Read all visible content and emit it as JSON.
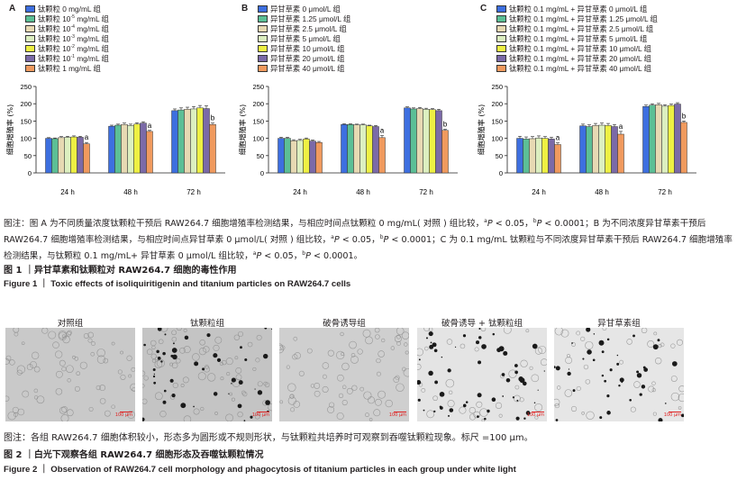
{
  "figure1": {
    "panels": [
      {
        "letter": "A",
        "legend": [
          {
            "text": "钛颗粒 0 mg/mL 组",
            "color": "#3d6fe0"
          },
          {
            "text": "钛颗粒 10",
            "sup": "-5",
            "text_after": " mg/mL 组",
            "color": "#5cbf96"
          },
          {
            "text": "钛颗粒 10",
            "sup": "-4",
            "text_after": " mg/mL 组",
            "color": "#e7d9b3"
          },
          {
            "text": "钛颗粒 10",
            "sup": "-3",
            "text_after": " mg/mL 组",
            "color": "#dcefc0"
          },
          {
            "text": "钛颗粒 10",
            "sup": "-2",
            "text_after": " mg/mL 组",
            "color": "#eef043"
          },
          {
            "text": "钛颗粒 10",
            "sup": "-1",
            "text_after": " mg/mL 组",
            "color": "#7b6aa8"
          },
          {
            "text": "钛颗粒 1 mg/mL 组",
            "color": "#f09a5e"
          }
        ]
      },
      {
        "letter": "B",
        "legend": [
          {
            "text": "异甘草素 0 μmol/L 组",
            "color": "#3d6fe0"
          },
          {
            "text": "异甘草素 1.25 μmol/L 组",
            "color": "#5cbf96"
          },
          {
            "text": "异甘草素 2.5 μmol/L 组",
            "color": "#e7d9b3"
          },
          {
            "text": "异甘草素 5 μmol/L 组",
            "color": "#dcefc0"
          },
          {
            "text": "异甘草素 10 μmol/L 组",
            "color": "#eef043"
          },
          {
            "text": "异甘草素 20 μmol/L 组",
            "color": "#7b6aa8"
          },
          {
            "text": "异甘草素 40 μmol/L 组",
            "color": "#f09a5e"
          }
        ]
      },
      {
        "letter": "C",
        "legend": [
          {
            "text": "钛颗粒 0.1 mg/mL + 异甘草素 0 μmol/L 组",
            "color": "#3d6fe0"
          },
          {
            "text": "钛颗粒 0.1 mg/mL + 异甘草素 1.25 μmol/L 组",
            "color": "#5cbf96"
          },
          {
            "text": "钛颗粒 0.1 mg/mL + 异甘草素 2.5 μmol/L 组",
            "color": "#e7d9b3"
          },
          {
            "text": "钛颗粒 0.1 mg/mL + 异甘草素 5 μmol/L 组",
            "color": "#dcefc0"
          },
          {
            "text": "钛颗粒 0.1 mg/mL + 异甘草素 10 μmol/L 组",
            "color": "#eef043"
          },
          {
            "text": "钛颗粒 0.1 mg/mL + 异甘草素 20 μmol/L 组",
            "color": "#7b6aa8"
          },
          {
            "text": "钛颗粒 0.1 mg/mL + 异甘草素 40 μmol/L 组",
            "color": "#f09a5e"
          }
        ]
      }
    ],
    "caption": "图注：图 A 为不同质量浓度钛颗粒干预后 RAW264.7 细胞增殖率检测结果，与相应时间点钛颗粒 0 mg/mL( 对照 ) 组比较，aP < 0.05，bP < 0.0001；B 为不同浓度异甘草素干预后 RAW264.7 细胞增殖率检测结果，与相应时间点异甘草素 0 μmol/L( 对照 ) 组比较，aP < 0.05，bP < 0.0001；C 为 0.1 mg/mL 钛颗粒与不同浓度异甘草素干预后 RAW264.7 细胞增殖率检测结果，与钛颗粒 0.1 mg/mL+ 异甘草素 0 μmol/L 组比较，aP < 0.05，bP < 0.0001。",
    "title_cn": "图 1 ｜异甘草素和钛颗粒对 RAW264.7 细胞的毒性作用",
    "title_en": "Figure 1 ｜ Toxic effects of isoliquiritigenin and titanium particles on RAW264.7 cells"
  },
  "chart_data": [
    {
      "type": "bar",
      "panel": "A",
      "ylabel": "细胞增殖率 (%)",
      "ylim": [
        0,
        250
      ],
      "yticks": [
        "0",
        "50",
        "100",
        "150",
        "200",
        "250"
      ],
      "categories": [
        "24 h",
        "48 h",
        "72 h"
      ],
      "series": [
        {
          "name": "钛颗粒 0 mg/mL 组",
          "color": "#3d6fe0",
          "values": [
            100,
            135,
            180
          ],
          "errors": [
            2,
            3,
            5
          ]
        },
        {
          "name": "钛颗粒 10-5 mg/mL 组",
          "color": "#5cbf96",
          "values": [
            99,
            138,
            182
          ],
          "errors": [
            2,
            3,
            6
          ]
        },
        {
          "name": "钛颗粒 10-4 mg/mL 组",
          "color": "#e7d9b3",
          "values": [
            102,
            140,
            184
          ],
          "errors": [
            3,
            4,
            6
          ]
        },
        {
          "name": "钛颗粒 10-3 mg/mL 组",
          "color": "#dcefc0",
          "values": [
            103,
            137,
            185
          ],
          "errors": [
            3,
            4,
            7
          ]
        },
        {
          "name": "钛颗粒 10-2 mg/mL 组",
          "color": "#eef043",
          "values": [
            104,
            141,
            188
          ],
          "errors": [
            3,
            4,
            7
          ]
        },
        {
          "name": "钛颗粒 10-1 mg/mL 组",
          "color": "#7b6aa8",
          "values": [
            103,
            144,
            186
          ],
          "errors": [
            3,
            4,
            8
          ]
        },
        {
          "name": "钛颗粒 1 mg/mL 组",
          "color": "#f09a5e",
          "values": [
            84,
            120,
            140
          ],
          "errors": [
            4,
            3,
            4
          ]
        }
      ],
      "annotations": [
        {
          "category": "24 h",
          "series": 6,
          "text": "a"
        },
        {
          "category": "48 h",
          "series": 6,
          "text": "a"
        },
        {
          "category": "72 h",
          "series": 6,
          "text": "b"
        }
      ]
    },
    {
      "type": "bar",
      "panel": "B",
      "ylabel": "细胞增殖率 (%)",
      "ylim": [
        0,
        250
      ],
      "yticks": [
        "0",
        "50",
        "100",
        "150",
        "200",
        "250"
      ],
      "categories": [
        "24 h",
        "48 h",
        "72 h"
      ],
      "series": [
        {
          "name": "异甘草素 0 μmol/L 组",
          "color": "#3d6fe0",
          "values": [
            100,
            140,
            188
          ],
          "errors": [
            3,
            2,
            3
          ]
        },
        {
          "name": "异甘草素 1.25 μmol/L 组",
          "color": "#5cbf96",
          "values": [
            100,
            140,
            185
          ],
          "errors": [
            3,
            2,
            3
          ]
        },
        {
          "name": "异甘草素 2.5 μmol/L 组",
          "color": "#e7d9b3",
          "values": [
            93,
            139,
            186
          ],
          "errors": [
            3,
            2,
            3
          ]
        },
        {
          "name": "异甘草素 5 μmol/L 组",
          "color": "#dcefc0",
          "values": [
            94,
            139,
            184
          ],
          "errors": [
            3,
            2,
            3
          ]
        },
        {
          "name": "异甘草素 10 μmol/L 组",
          "color": "#eef043",
          "values": [
            98,
            136,
            183
          ],
          "errors": [
            3,
            2,
            3
          ]
        },
        {
          "name": "异甘草素 20 μmol/L 组",
          "color": "#7b6aa8",
          "values": [
            92,
            134,
            180
          ],
          "errors": [
            3,
            3,
            4
          ]
        },
        {
          "name": "异甘草素 40 μmol/L 组",
          "color": "#f09a5e",
          "values": [
            88,
            102,
            123
          ],
          "errors": [
            3,
            6,
            3
          ]
        }
      ],
      "annotations": [
        {
          "category": "48 h",
          "series": 6,
          "text": "a"
        },
        {
          "category": "72 h",
          "series": 6,
          "text": "b"
        }
      ]
    },
    {
      "type": "bar",
      "panel": "C",
      "ylabel": "细胞增殖率 (%)",
      "ylim": [
        0,
        250
      ],
      "yticks": [
        "0",
        "50",
        "100",
        "150",
        "200",
        "250"
      ],
      "categories": [
        "24 h",
        "48 h",
        "72 h"
      ],
      "series": [
        {
          "name": "钛颗粒 0.1 mg/mL + 异甘草素 0 μmol/L 组",
          "color": "#3d6fe0",
          "values": [
            100,
            136,
            192
          ],
          "errors": [
            6,
            5,
            4
          ]
        },
        {
          "name": "钛颗粒 0.1 mg/mL + 异甘草素 1.25 μmol/L 组",
          "color": "#5cbf96",
          "values": [
            98,
            134,
            196
          ],
          "errors": [
            6,
            5,
            4
          ]
        },
        {
          "name": "钛颗粒 0.1 mg/mL + 异甘草素 2.5 μmol/L 组",
          "color": "#e7d9b3",
          "values": [
            99,
            137,
            197
          ],
          "errors": [
            6,
            6,
            4
          ]
        },
        {
          "name": "钛颗粒 0.1 mg/mL + 异甘草素 5 μmol/L 组",
          "color": "#dcefc0",
          "values": [
            101,
            138,
            193
          ],
          "errors": [
            6,
            6,
            4
          ]
        },
        {
          "name": "钛颗粒 0.1 mg/mL + 异甘草素 10 μmol/L 组",
          "color": "#eef043",
          "values": [
            100,
            137,
            195
          ],
          "errors": [
            5,
            6,
            4
          ]
        },
        {
          "name": "钛颗粒 0.1 mg/mL + 异甘草素 20 μmol/L 组",
          "color": "#7b6aa8",
          "values": [
            98,
            134,
            199
          ],
          "errors": [
            5,
            6,
            4
          ]
        },
        {
          "name": "钛颗粒 0.1 mg/mL + 异甘草素 40 μmol/L 组",
          "color": "#f09a5e",
          "values": [
            82,
            112,
            146
          ],
          "errors": [
            5,
            8,
            4
          ]
        }
      ],
      "annotations": [
        {
          "category": "24 h",
          "series": 6,
          "text": "a"
        },
        {
          "category": "48 h",
          "series": 6,
          "text": "a"
        },
        {
          "category": "72 h",
          "series": 6,
          "text": "b"
        }
      ]
    }
  ],
  "figure2": {
    "image_labels": [
      "对照组",
      "钛颗粒组",
      "破骨诱导组",
      "破骨诱导 + 钛颗粒组",
      "异甘草素组"
    ],
    "scale_label": "100 μm",
    "caption": "图注：各组 RAW264.7 细胞体积较小，形态多为圆形或不规则形状，与钛颗粒共培养时可观察到吞噬钛颗粒现象。标尺 =100 μm。",
    "title_cn": "图 2 ｜白光下观察各组 RAW264.7 细胞形态及吞噬钛颗粒情况",
    "title_en": "Figure 2 ｜ Observation of RAW264.7 cell morphology and phagocytosis of titanium particles in each group under white light"
  }
}
